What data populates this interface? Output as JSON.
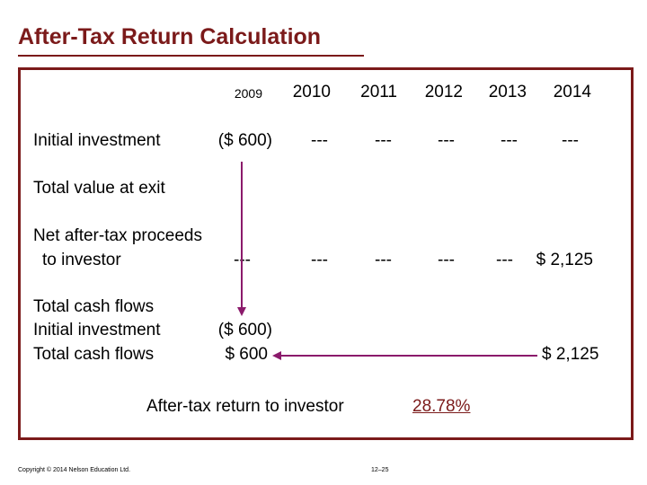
{
  "title": "After-Tax Return Calculation",
  "years": [
    "2009",
    "2010",
    "2011",
    "2012",
    "2013",
    "2014"
  ],
  "rows": {
    "initial_investment": {
      "label": "Initial investment",
      "values": [
        "($ 600)",
        "---",
        "---",
        "---",
        "---",
        "---"
      ]
    },
    "total_value_at_exit": {
      "label": "Total value at exit"
    },
    "net_proceeds": {
      "label_line1": "Net after-tax proceeds",
      "label_line2": "to investor",
      "values": [
        "---",
        "---",
        "---",
        "---",
        "---",
        "$ 2,125"
      ]
    }
  },
  "summary": {
    "heading": "Total cash flows",
    "initial_label": "Initial investment",
    "initial_value": "($ 600)",
    "total_label": "Total cash flows",
    "total_left_value": "$ 600",
    "total_right_value": "$ 2,125"
  },
  "result": {
    "label": "After-tax return to investor",
    "value": "28.78%"
  },
  "footer": {
    "copyright": "Copyright © 2014 Nelson Education Ltd.",
    "page": "12–25"
  },
  "colors": {
    "accent": "#7b1a1a",
    "arrow": "#8b1a6b"
  }
}
